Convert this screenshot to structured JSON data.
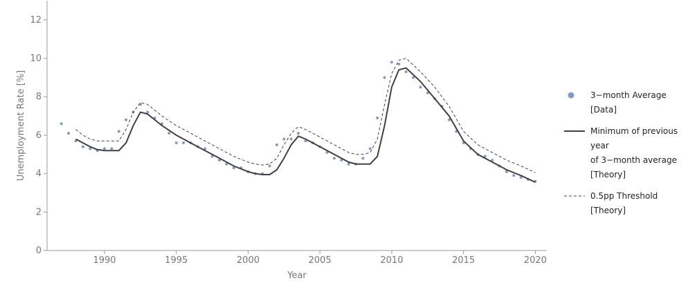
{
  "chart_data": {
    "type": "line",
    "x_label": "Year",
    "y_label": "Unemployment Rate [%]",
    "xlim": [
      1986,
      2020.8
    ],
    "ylim": [
      0,
      13
    ],
    "xticks": [
      1990,
      1995,
      2000,
      2005,
      2010,
      2015,
      2020
    ],
    "yticks": [
      0,
      2,
      4,
      6,
      8,
      10,
      12
    ],
    "series": [
      {
        "name": "3−month Average\n[Data]",
        "type": "scatter",
        "color": "#8399c9",
        "x": [
          1987.0,
          1987.5,
          1988.0,
          1988.5,
          1989.0,
          1989.5,
          1990.0,
          1990.5,
          1991.0,
          1991.5,
          1992.0,
          1992.5,
          1993.0,
          1993.5,
          1994.0,
          1994.5,
          1995.0,
          1995.5,
          1996.0,
          1996.5,
          1997.0,
          1997.5,
          1998.0,
          1998.5,
          1999.0,
          1999.5,
          2000.0,
          2000.5,
          2001.0,
          2001.5,
          2002.0,
          2002.5,
          2003.0,
          2003.5,
          2004.0,
          2004.5,
          2005.0,
          2005.5,
          2006.0,
          2006.5,
          2007.0,
          2007.5,
          2008.0,
          2008.5,
          2009.0,
          2009.5,
          2010.0,
          2010.5,
          2011.0,
          2011.5,
          2012.0,
          2012.5,
          2013.0,
          2013.5,
          2014.0,
          2014.5,
          2015.0,
          2015.5,
          2016.0,
          2016.5,
          2017.0,
          2017.5,
          2018.0,
          2018.5,
          2019.0,
          2019.5,
          2020.0
        ],
        "values": [
          6.6,
          6.1,
          5.7,
          5.4,
          5.3,
          5.2,
          5.3,
          5.3,
          6.2,
          6.8,
          7.2,
          7.6,
          7.2,
          6.9,
          6.6,
          6.1,
          5.6,
          5.6,
          5.6,
          5.4,
          5.3,
          4.9,
          4.7,
          4.5,
          4.3,
          4.3,
          4.1,
          4.0,
          4.0,
          4.4,
          5.5,
          5.8,
          5.8,
          6.1,
          5.7,
          5.6,
          5.4,
          5.1,
          4.8,
          4.7,
          4.5,
          4.5,
          4.8,
          5.3,
          6.9,
          9.0,
          9.8,
          9.7,
          9.3,
          9.0,
          8.5,
          8.2,
          7.9,
          7.5,
          6.8,
          6.2,
          5.6,
          5.3,
          5.0,
          4.9,
          4.7,
          4.4,
          4.1,
          3.9,
          3.8,
          3.7,
          3.6
        ]
      },
      {
        "name": "Minimum of previous year\nof 3−month average\n[Theory]",
        "type": "line",
        "color": "#404040",
        "dash": false,
        "x": [
          1988.0,
          1988.5,
          1989.0,
          1989.5,
          1990.0,
          1990.5,
          1991.0,
          1991.5,
          1992.0,
          1992.5,
          1993.0,
          1993.5,
          1994.0,
          1995.0,
          1996.0,
          1997.0,
          1998.0,
          1999.0,
          2000.0,
          2000.5,
          2001.0,
          2001.5,
          2002.0,
          2002.5,
          2003.0,
          2003.5,
          2004.0,
          2005.0,
          2006.0,
          2007.0,
          2007.5,
          2008.0,
          2008.5,
          2009.0,
          2009.5,
          2010.0,
          2010.5,
          2011.0,
          2012.0,
          2013.0,
          2014.0,
          2015.0,
          2016.0,
          2017.0,
          2018.0,
          2019.0,
          2020.0
        ],
        "values": [
          5.8,
          5.6,
          5.4,
          5.25,
          5.2,
          5.2,
          5.2,
          5.6,
          6.5,
          7.2,
          7.1,
          6.8,
          6.5,
          6.0,
          5.6,
          5.2,
          4.8,
          4.4,
          4.1,
          4.0,
          3.95,
          3.95,
          4.2,
          4.8,
          5.5,
          5.95,
          5.8,
          5.4,
          5.0,
          4.6,
          4.5,
          4.5,
          4.5,
          4.9,
          6.5,
          8.5,
          9.4,
          9.5,
          8.8,
          7.9,
          7.0,
          5.7,
          5.0,
          4.6,
          4.2,
          3.9,
          3.55
        ]
      },
      {
        "name": "0.5pp Threshold\n[Theory]",
        "type": "line",
        "color": "#404040",
        "dash": true,
        "x": [
          1988.0,
          1988.5,
          1989.0,
          1989.5,
          1990.0,
          1990.5,
          1991.0,
          1991.5,
          1992.0,
          1992.5,
          1993.0,
          1993.5,
          1994.0,
          1995.0,
          1996.0,
          1997.0,
          1998.0,
          1999.0,
          2000.0,
          2000.5,
          2001.0,
          2001.5,
          2002.0,
          2002.5,
          2003.0,
          2003.5,
          2004.0,
          2005.0,
          2006.0,
          2007.0,
          2007.5,
          2008.0,
          2008.5,
          2009.0,
          2009.5,
          2010.0,
          2010.5,
          2011.0,
          2012.0,
          2013.0,
          2014.0,
          2015.0,
          2016.0,
          2017.0,
          2018.0,
          2019.0,
          2020.0
        ],
        "values": [
          6.3,
          6.0,
          5.8,
          5.7,
          5.7,
          5.7,
          5.7,
          6.3,
          7.2,
          7.7,
          7.6,
          7.3,
          7.0,
          6.5,
          6.1,
          5.7,
          5.3,
          4.9,
          4.6,
          4.5,
          4.45,
          4.5,
          4.8,
          5.5,
          6.1,
          6.45,
          6.3,
          5.9,
          5.5,
          5.1,
          5.0,
          5.0,
          5.1,
          5.8,
          7.6,
          9.2,
          9.9,
          10.0,
          9.3,
          8.5,
          7.5,
          6.2,
          5.5,
          5.1,
          4.7,
          4.4,
          4.05
        ]
      }
    ]
  }
}
